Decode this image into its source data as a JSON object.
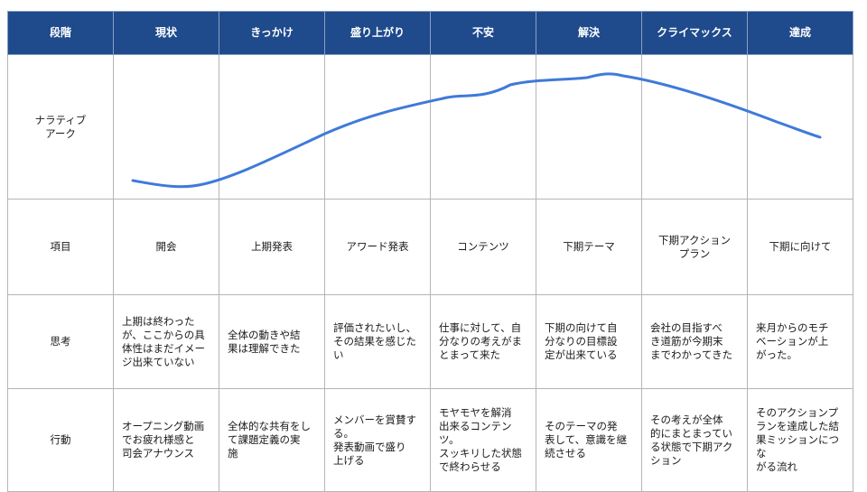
{
  "header": {
    "stage_label": "段階",
    "stages": [
      "現状",
      "きっかけ",
      "盛り上がり",
      "不安",
      "解決",
      "クライマックス",
      "達成"
    ]
  },
  "rows": {
    "arc": {
      "label": "ナラティブ\nアーク"
    },
    "item": {
      "label": "項目",
      "cells": [
        "開会",
        "上期発表",
        "アワード発表",
        "コンテンツ",
        "下期テーマ",
        "下期アクション\nプラン",
        "下期に向けて"
      ]
    },
    "thinking": {
      "label": "思考",
      "cells": [
        "上期は終わった\nが、ここからの具\n体性はまだイメー\nジ出来ていない",
        "全体の動きや結\n果は理解できた",
        "評価されたいし、\nその結果を感じた\nい",
        "仕事に対して、自\n分なりの考えがま\nとまって来た",
        "下期の向けて自\n分なりの目標設\n定が出来ている",
        "会社の目指すべ\nき道筋が今期末\nまでわかってきた",
        "来月からのモチ\nベーションが上\nがった。"
      ]
    },
    "action": {
      "label": "行動",
      "cells": [
        "オープニング動画\nでお疲れ様感と\n司会アナウンス",
        "全体的な共有をし\nて課題定義の実\n施",
        "メンバーを賞賛す\nる。\n発表動画で盛り\n上げる",
        "モヤモヤを解消\n出来るコンテン\nツ。\nスッキリした状態\nで終わらせる",
        "そのテーマの発\n表して、意識を継\n続させる",
        "その考えが全体\n的にまとまってい\nる状態で下期アク\nション",
        "そのアクションプ\nランを達成した結\n果ミッションにつな\nがる流れ"
      ]
    }
  },
  "colors": {
    "header_bg": "#1f4a8c",
    "curve": "#3f7ad9",
    "grid": "#b5b5b5"
  },
  "narrative_curve": {
    "description_levels": [
      0.1,
      0.35,
      0.7,
      0.85,
      0.93,
      0.9,
      0.45
    ]
  }
}
